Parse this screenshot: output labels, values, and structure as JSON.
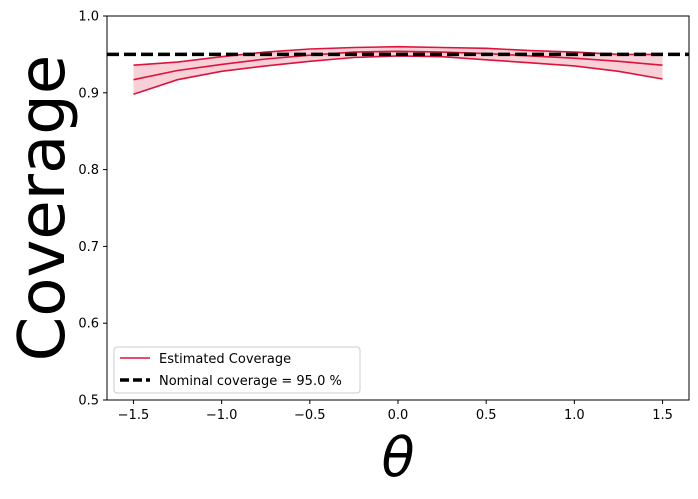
{
  "chart_data": {
    "type": "line",
    "xlabel": "θ",
    "ylabel": "Coverage",
    "xlim": [
      -1.65,
      1.65
    ],
    "ylim": [
      0.5,
      1.0
    ],
    "x_ticks": [
      -1.5,
      -1.0,
      -0.5,
      0.0,
      0.5,
      1.0,
      1.5
    ],
    "x_tick_labels": [
      "−1.5",
      "−1.0",
      "−0.5",
      "0.0",
      "0.5",
      "1.0",
      "1.5"
    ],
    "y_ticks": [
      0.5,
      0.6,
      0.7,
      0.8,
      0.9,
      1.0
    ],
    "y_tick_labels": [
      "0.5",
      "0.6",
      "0.7",
      "0.8",
      "0.9",
      "1.0"
    ],
    "grid": false,
    "legend_position": "lower-left",
    "series": [
      {
        "name": "Estimated Coverage",
        "color": "#dc143c",
        "x": [
          -1.5,
          -1.25,
          -1.0,
          -0.75,
          -0.5,
          -0.25,
          0.0,
          0.25,
          0.5,
          0.75,
          1.0,
          1.25,
          1.5
        ],
        "y": [
          0.917,
          0.929,
          0.937,
          0.944,
          0.949,
          0.953,
          0.954,
          0.953,
          0.951,
          0.948,
          0.945,
          0.941,
          0.936
        ],
        "band_upper": [
          0.936,
          0.94,
          0.947,
          0.953,
          0.957,
          0.959,
          0.96,
          0.959,
          0.958,
          0.955,
          0.953,
          0.95,
          0.95
        ],
        "band_lower": [
          0.898,
          0.917,
          0.928,
          0.935,
          0.941,
          0.946,
          0.948,
          0.947,
          0.943,
          0.939,
          0.935,
          0.928,
          0.918
        ]
      }
    ],
    "reference_line": {
      "name": "Nominal coverage = 95.0 %",
      "y": 0.95,
      "color": "#000000",
      "style": "dashed"
    }
  }
}
